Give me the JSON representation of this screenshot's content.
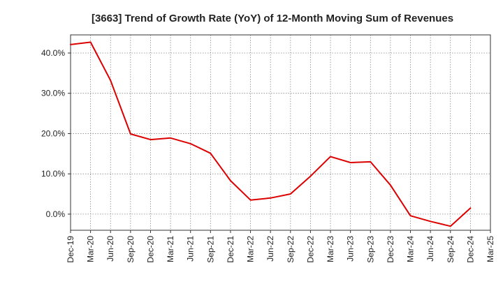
{
  "chart_data": {
    "type": "line",
    "title": "[3663]  Trend of Growth Rate (YoY) of 12-Month Moving Sum of Revenues",
    "xlabel": "",
    "ylabel": "",
    "categories": [
      "Dec-19",
      "Mar-20",
      "Jun-20",
      "Sep-20",
      "Dec-20",
      "Mar-21",
      "Jun-21",
      "Sep-21",
      "Dec-21",
      "Mar-22",
      "Jun-22",
      "Sep-22",
      "Dec-22",
      "Mar-23",
      "Jun-23",
      "Sep-23",
      "Dec-23",
      "Mar-24",
      "Jun-24",
      "Sep-24",
      "Dec-24",
      "Mar-25"
    ],
    "series": [
      {
        "values": [
          42.1,
          42.7,
          33.2,
          19.9,
          18.5,
          18.9,
          17.5,
          15.1,
          8.3,
          3.5,
          4.0,
          5.0,
          9.4,
          14.3,
          12.8,
          13.0,
          7.2,
          -0.4,
          -1.8,
          -3.0,
          1.5,
          null
        ],
        "color": "#dd0000"
      }
    ],
    "yticks": [
      0,
      10,
      20,
      30,
      40
    ],
    "ytick_labels": [
      "0.0%",
      "10.0%",
      "20.0%",
      "30.0%",
      "40.0%"
    ],
    "ylim": [
      -4,
      44.5
    ],
    "grid": true,
    "legend": "none"
  }
}
